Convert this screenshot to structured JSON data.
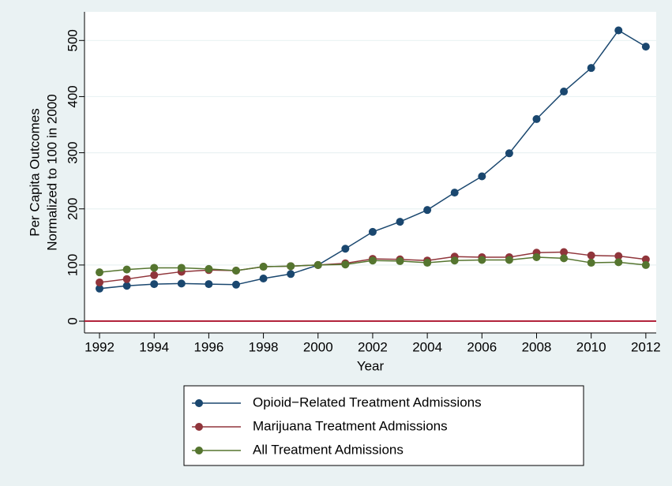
{
  "chart_data": {
    "type": "line",
    "xlabel": "Year",
    "ylabel": [
      "Per Capita Outcomes",
      "Normalized to 100 in 2000"
    ],
    "x": [
      1992,
      1993,
      1994,
      1995,
      1996,
      1997,
      1998,
      1999,
      2000,
      2001,
      2002,
      2003,
      2004,
      2005,
      2006,
      2007,
      2008,
      2009,
      2010,
      2011,
      2012
    ],
    "series": [
      {
        "name": "Opioid−Related Treatment Admissions",
        "color": "#1a476f",
        "values": [
          58,
          63,
          66,
          67,
          66,
          65,
          76,
          84,
          100,
          129,
          159,
          177,
          198,
          229,
          258,
          299,
          360,
          409,
          451,
          518,
          489
        ]
      },
      {
        "name": "Marijuana Treatment Admissions",
        "color": "#90353b",
        "values": [
          69,
          75,
          82,
          88,
          91,
          90,
          97,
          98,
          100,
          103,
          111,
          110,
          108,
          115,
          114,
          114,
          122,
          123,
          117,
          116,
          110
        ]
      },
      {
        "name": "All Treatment Admissions",
        "color": "#55752f",
        "values": [
          87,
          92,
          95,
          95,
          93,
          90,
          97,
          98,
          100,
          101,
          108,
          107,
          104,
          108,
          109,
          109,
          114,
          112,
          104,
          105,
          100
        ]
      }
    ],
    "xlim": [
      1991.45,
      2012.38
    ],
    "xticks": [
      1992,
      1994,
      1996,
      1998,
      2000,
      2002,
      2004,
      2006,
      2008,
      2010,
      2012
    ],
    "ylim": [
      -21,
      551
    ],
    "yticks": [
      0,
      100,
      200,
      300,
      400,
      500
    ],
    "grid": true,
    "reference_line": {
      "value": 0,
      "color": "#b2243c"
    },
    "legend": "bottom"
  }
}
